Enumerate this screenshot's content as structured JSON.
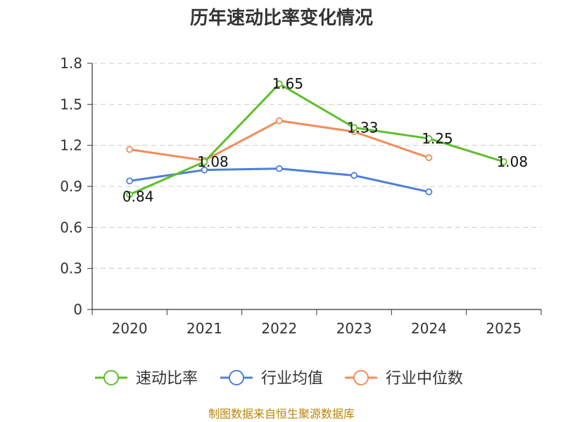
{
  "chart_data": {
    "type": "line",
    "title": "历年速动比率变化情况",
    "categories": [
      "2020",
      "2021",
      "2022",
      "2023",
      "2024",
      "2025"
    ],
    "y_ticks": [
      "0",
      "0.3",
      "0.6",
      "0.9",
      "1.2",
      "1.5",
      "1.8"
    ],
    "ylim": [
      0,
      1.8
    ],
    "grid": true,
    "legend_position": "bottom",
    "series": [
      {
        "name": "速动比率",
        "color": "#5cbf2a",
        "values": [
          0.84,
          1.08,
          1.65,
          1.33,
          1.25,
          1.08
        ],
        "labels": [
          "0.84",
          "1.08",
          "1.65",
          "1.33",
          "1.25",
          "1.08"
        ]
      },
      {
        "name": "行业均值",
        "color": "#4e7fd8",
        "values": [
          0.94,
          1.02,
          1.03,
          0.98,
          0.86,
          null
        ]
      },
      {
        "name": "行业中位数",
        "color": "#f28c5b",
        "values": [
          1.17,
          1.09,
          1.38,
          1.3,
          1.11,
          null
        ]
      }
    ],
    "source": "制图数据来自恒生聚源数据库"
  }
}
